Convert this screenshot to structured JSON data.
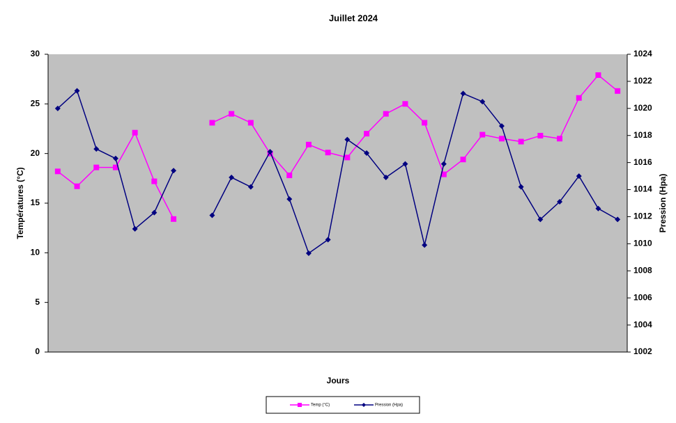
{
  "chart_data": {
    "type": "line",
    "title": "Juillet 2024",
    "x_label": "Jours",
    "y_label": "Températures (°C)",
    "y2_label": "Pression (Hpa)",
    "categories": [
      null,
      null,
      null,
      null,
      null,
      null,
      null,
      null,
      null,
      null,
      null,
      null,
      null,
      null,
      null,
      null,
      null,
      null,
      null,
      null,
      null,
      null,
      null,
      null,
      null,
      null,
      null,
      null,
      null,
      null
    ],
    "series": [
      {
        "name": "Temp (°C)",
        "color": "#ff00ff",
        "marker": "square",
        "values": [
          18.2,
          16.7,
          18.6,
          18.6,
          22.1,
          17.2,
          13.4,
          null,
          23.1,
          24.0,
          23.1,
          20.0,
          17.8,
          20.9,
          20.1,
          19.6,
          22.0,
          24.0,
          25.0,
          23.1,
          17.9,
          19.4,
          21.9,
          21.5,
          21.2,
          21.8,
          21.5,
          25.6,
          27.9,
          26.3
        ]
      },
      {
        "name": "Pression (Hpa)",
        "color": "#000080",
        "marker": "diamond",
        "axis": "y2",
        "values": [
          1020.0,
          1021.3,
          1017.0,
          1016.3,
          1011.1,
          1012.3,
          1015.4,
          null,
          1012.1,
          1014.9,
          1014.2,
          1016.8,
          1013.3,
          1009.3,
          1010.3,
          1017.7,
          1016.7,
          1014.9,
          1015.9,
          1009.9,
          1015.9,
          1021.1,
          1020.5,
          1018.7,
          1014.2,
          1011.8,
          1013.1,
          1015.0,
          1012.6,
          1011.8
        ]
      }
    ],
    "ylim": [
      0,
      30
    ],
    "yticks": [
      0,
      5,
      10,
      15,
      20,
      25,
      30
    ],
    "y2lim": [
      1002,
      1024
    ],
    "y2ticks": [
      1002,
      1004,
      1006,
      1008,
      1010,
      1012,
      1014,
      1016,
      1018,
      1020,
      1022,
      1024
    ],
    "plot_background": "#c0c0c0",
    "legend": "bottom"
  }
}
